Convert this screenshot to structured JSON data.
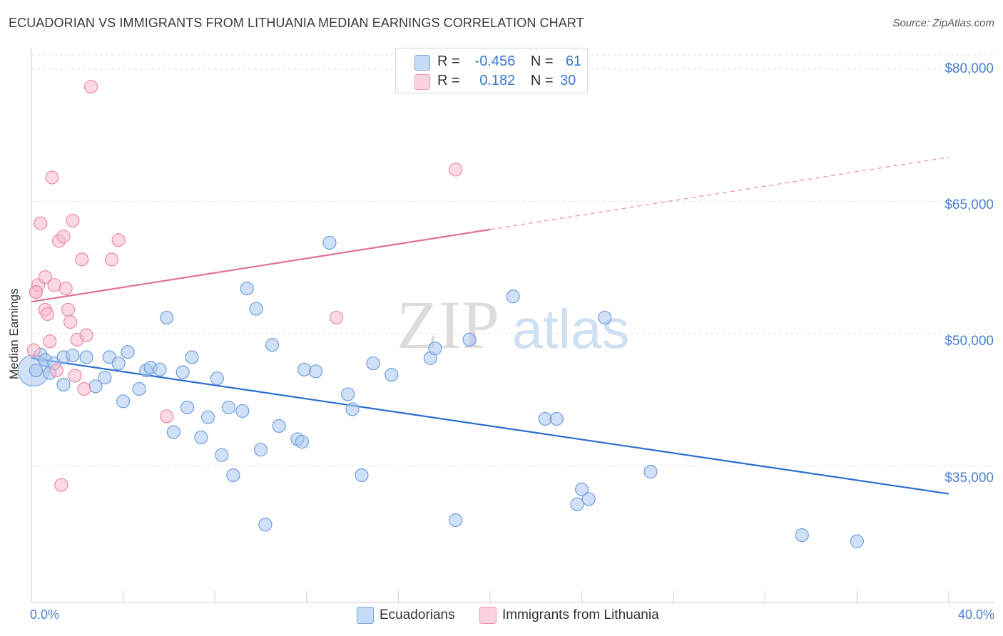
{
  "title": "ECUADORIAN VS IMMIGRANTS FROM LITHUANIA MEDIAN EARNINGS CORRELATION CHART",
  "source": "Source: ZipAtlas.com",
  "watermark": {
    "zip": "ZIP",
    "atlas": "atlas"
  },
  "legend": {
    "rows": [
      {
        "r_label": "R =",
        "r_value": "-0.456",
        "n_label": "N =",
        "n_value": "61",
        "color": "#a9c7ee"
      },
      {
        "r_label": "R =",
        "r_value": "0.182",
        "n_label": "N =",
        "n_value": "30",
        "color": "#f6b9cc"
      }
    ]
  },
  "chart_data": {
    "type": "scatter",
    "title": "ECUADORIAN VS IMMIGRANTS FROM LITHUANIA MEDIAN EARNINGS CORRELATION CHART",
    "xlabel": "",
    "ylabel": "Median Earnings",
    "xlim": [
      0,
      40
    ],
    "ylim": [
      20000,
      82500
    ],
    "x_tick_labels": [
      "0.0%",
      "40.0%"
    ],
    "y_ticks": [
      35000,
      50000,
      65000,
      80000
    ],
    "y_tick_labels": [
      "$35,000",
      "$50,000",
      "$65,000",
      "$80,000"
    ],
    "series": [
      {
        "name": "Ecuadorians",
        "color": "#a9c7ee",
        "stroke": "#6f9fdb",
        "trend": {
          "x0": 0,
          "y0": 47200,
          "x1": 40,
          "y1": 31800,
          "color": "#2a6fce"
        },
        "points": [
          [
            0.2,
            45800
          ],
          [
            0.4,
            47600
          ],
          [
            0.6,
            47000
          ],
          [
            0.8,
            45500
          ],
          [
            1.0,
            46600
          ],
          [
            1.4,
            47300
          ],
          [
            1.8,
            47500
          ],
          [
            1.4,
            44200
          ],
          [
            2.4,
            47300
          ],
          [
            2.8,
            44000
          ],
          [
            3.2,
            45000
          ],
          [
            3.4,
            47300
          ],
          [
            3.8,
            46600
          ],
          [
            4.0,
            42300
          ],
          [
            4.2,
            47900
          ],
          [
            4.7,
            43700
          ],
          [
            5.0,
            45800
          ],
          [
            5.2,
            46100
          ],
          [
            5.6,
            45900
          ],
          [
            5.9,
            51800
          ],
          [
            6.2,
            38800
          ],
          [
            6.6,
            45600
          ],
          [
            6.8,
            41600
          ],
          [
            7.0,
            47300
          ],
          [
            7.4,
            38200
          ],
          [
            7.7,
            40500
          ],
          [
            8.1,
            44900
          ],
          [
            8.3,
            36200
          ],
          [
            8.6,
            41600
          ],
          [
            8.8,
            33900
          ],
          [
            9.2,
            41200
          ],
          [
            9.4,
            55100
          ],
          [
            9.8,
            52800
          ],
          [
            10.0,
            36800
          ],
          [
            10.2,
            28300
          ],
          [
            10.5,
            48700
          ],
          [
            10.8,
            39500
          ],
          [
            11.6,
            38000
          ],
          [
            11.8,
            37700
          ],
          [
            11.9,
            45900
          ],
          [
            12.4,
            45700
          ],
          [
            13.0,
            60300
          ],
          [
            13.8,
            43100
          ],
          [
            14.0,
            41400
          ],
          [
            14.4,
            33900
          ],
          [
            14.9,
            46600
          ],
          [
            15.7,
            45300
          ],
          [
            17.4,
            47200
          ],
          [
            17.6,
            48300
          ],
          [
            18.5,
            28800
          ],
          [
            19.1,
            49300
          ],
          [
            21.0,
            54200
          ],
          [
            22.4,
            40300
          ],
          [
            22.9,
            40300
          ],
          [
            23.8,
            30600
          ],
          [
            24.0,
            32300
          ],
          [
            24.3,
            31200
          ],
          [
            25.0,
            51800
          ],
          [
            27.0,
            34300
          ],
          [
            33.6,
            27100
          ],
          [
            36.0,
            26400
          ]
        ]
      },
      {
        "name": "Immigrants from Lithuania",
        "color": "#f6b9cc",
        "stroke": "#e88aa8",
        "trend": {
          "x0": 0,
          "y0": 53600,
          "x1": 20,
          "y1": 61800,
          "dash_to_x": 40,
          "dash_to_y": 70000,
          "color": "#e0709a"
        },
        "points": [
          [
            0.1,
            48100
          ],
          [
            0.2,
            54700
          ],
          [
            0.3,
            55500
          ],
          [
            0.4,
            62500
          ],
          [
            0.6,
            52700
          ],
          [
            0.6,
            56400
          ],
          [
            0.7,
            52200
          ],
          [
            0.8,
            49100
          ],
          [
            0.9,
            67700
          ],
          [
            1.0,
            55500
          ],
          [
            1.1,
            45800
          ],
          [
            1.2,
            60500
          ],
          [
            1.3,
            32800
          ],
          [
            1.4,
            61000
          ],
          [
            1.5,
            55100
          ],
          [
            1.6,
            52700
          ],
          [
            1.7,
            51300
          ],
          [
            1.8,
            62800
          ],
          [
            1.9,
            45200
          ],
          [
            2.0,
            49300
          ],
          [
            2.2,
            58400
          ],
          [
            2.3,
            43700
          ],
          [
            2.4,
            49800
          ],
          [
            2.6,
            78000
          ],
          [
            3.5,
            58400
          ],
          [
            3.8,
            60600
          ],
          [
            5.9,
            40600
          ],
          [
            13.3,
            51800
          ],
          [
            18.5,
            68600
          ],
          [
            0.2,
            54700
          ]
        ]
      }
    ]
  },
  "bottom_legend": [
    {
      "label": "Ecuadorians",
      "color": "#a9c7ee"
    },
    {
      "label": "Immigrants from Lithuania",
      "color": "#f6b9cc"
    }
  ]
}
